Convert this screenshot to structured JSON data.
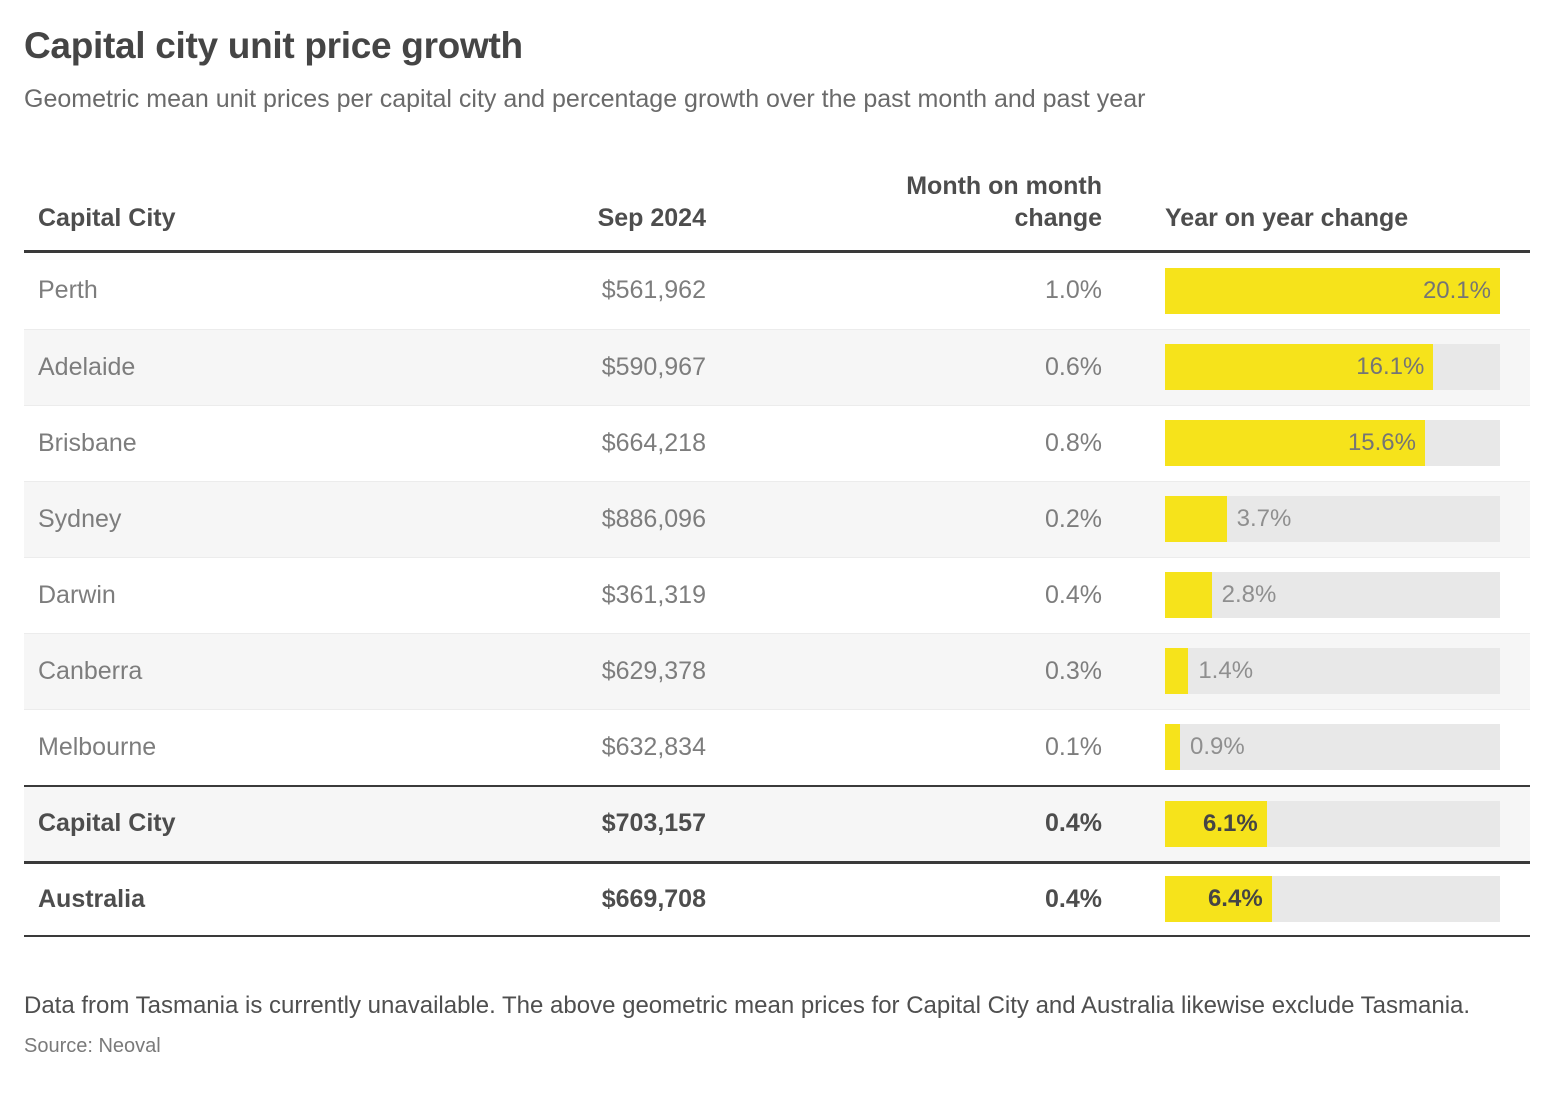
{
  "header": {
    "title": "Capital city unit price growth",
    "subtitle": "Geometric mean unit prices per capital city and percentage growth over the past month and past year"
  },
  "table": {
    "columns": [
      {
        "label": "Capital City"
      },
      {
        "label": "Sep 2024"
      },
      {
        "label": "Month on month change"
      },
      {
        "label": "Year on year change"
      }
    ],
    "yoy_axis_max": 20.1,
    "rows": [
      {
        "city": "Perth",
        "price": "$561,962",
        "mom": "1.0%",
        "yoy": "20.1%",
        "yoy_value": 20.1,
        "emphasis": false
      },
      {
        "city": "Adelaide",
        "price": "$590,967",
        "mom": "0.6%",
        "yoy": "16.1%",
        "yoy_value": 16.1,
        "emphasis": false
      },
      {
        "city": "Brisbane",
        "price": "$664,218",
        "mom": "0.8%",
        "yoy": "15.6%",
        "yoy_value": 15.6,
        "emphasis": false
      },
      {
        "city": "Sydney",
        "price": "$886,096",
        "mom": "0.2%",
        "yoy": "3.7%",
        "yoy_value": 3.7,
        "emphasis": false
      },
      {
        "city": "Darwin",
        "price": "$361,319",
        "mom": "0.4%",
        "yoy": "2.8%",
        "yoy_value": 2.8,
        "emphasis": false
      },
      {
        "city": "Canberra",
        "price": "$629,378",
        "mom": "0.3%",
        "yoy": "1.4%",
        "yoy_value": 1.4,
        "emphasis": false
      },
      {
        "city": "Melbourne",
        "price": "$632,834",
        "mom": "0.1%",
        "yoy": "0.9%",
        "yoy_value": 0.9,
        "emphasis": false
      },
      {
        "city": "Capital City",
        "price": "$703,157",
        "mom": "0.4%",
        "yoy": "6.1%",
        "yoy_value": 6.1,
        "emphasis": true
      },
      {
        "city": "Australia",
        "price": "$669,708",
        "mom": "0.4%",
        "yoy": "6.4%",
        "yoy_value": 6.4,
        "emphasis": true
      }
    ]
  },
  "footer": {
    "note": "Data from Tasmania is currently unavailable. The above geometric mean prices for Capital City and Australia likewise exclude Tasmania.",
    "source": "Source: Neoval"
  },
  "colors": {
    "bar_fill": "#f6e31b",
    "bar_track": "#e8e8e8",
    "row_alt_bg": "#f6f6f6",
    "rule_dark": "#3a3a3a",
    "text_primary": "#4d4d4d",
    "text_secondary": "#7d7d7d"
  },
  "chart_data": {
    "type": "table",
    "title": "Capital city unit price growth",
    "subtitle": "Geometric mean unit prices per capital city and percentage growth over the past month and past year",
    "columns": [
      "Capital City",
      "Sep 2024",
      "Month on month change",
      "Year on year change"
    ],
    "rows": [
      [
        "Perth",
        "$561,962",
        "1.0%",
        "20.1%"
      ],
      [
        "Adelaide",
        "$590,967",
        "0.6%",
        "16.1%"
      ],
      [
        "Brisbane",
        "$664,218",
        "0.8%",
        "15.6%"
      ],
      [
        "Sydney",
        "$886,096",
        "0.2%",
        "3.7%"
      ],
      [
        "Darwin",
        "$361,319",
        "0.4%",
        "2.8%"
      ],
      [
        "Canberra",
        "$629,378",
        "0.3%",
        "1.4%"
      ],
      [
        "Melbourne",
        "$632,834",
        "0.1%",
        "0.9%"
      ],
      [
        "Capital City",
        "$703,157",
        "0.4%",
        "6.1%"
      ],
      [
        "Australia",
        "$669,708",
        "0.4%",
        "6.4%"
      ]
    ],
    "embedded_bar": {
      "column": "Year on year change",
      "categories": [
        "Perth",
        "Adelaide",
        "Brisbane",
        "Sydney",
        "Darwin",
        "Canberra",
        "Melbourne",
        "Capital City",
        "Australia"
      ],
      "values": [
        20.1,
        16.1,
        15.6,
        3.7,
        2.8,
        1.4,
        0.9,
        6.1,
        6.4
      ],
      "unit": "%",
      "axis_max": 20.1,
      "bar_color": "#f6e31b",
      "track_color": "#e8e8e8",
      "orientation": "horizontal"
    },
    "source": "Source: Neoval"
  }
}
